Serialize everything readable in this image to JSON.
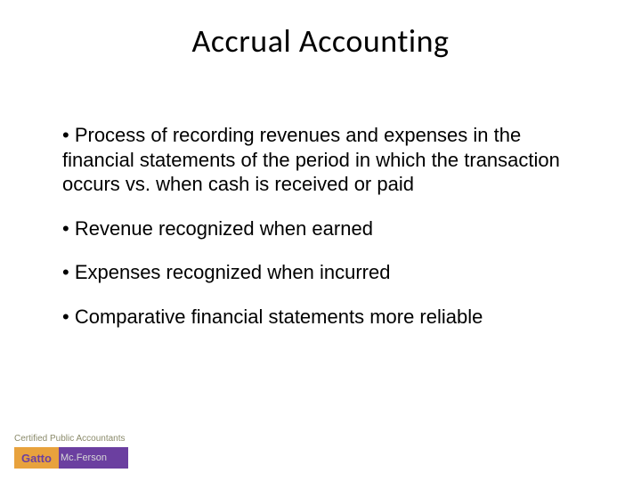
{
  "title": "Accrual Accounting",
  "bullets": [
    "• Process of recording revenues and expenses in the financial statements of the period in which the transaction occurs vs. when cash is received or paid",
    "• Revenue recognized when earned",
    "• Expenses recognized when incurred",
    "• Comparative financial statements more reliable"
  ],
  "footer_text": "Certified Public Accountants",
  "logo": {
    "left_text": "Gatto",
    "right_text": "Mc.Ferson",
    "left_bg": "#e8a23d",
    "right_bg": "#6b3fa0",
    "left_color": "#6b3fa0",
    "right_color": "#d8d8d8"
  },
  "colors": {
    "background": "#ffffff",
    "text": "#000000",
    "footer_text": "#8a8a6a"
  }
}
